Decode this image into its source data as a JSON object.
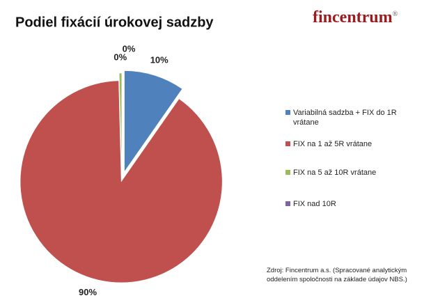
{
  "chart_data": {
    "type": "pie",
    "title": "Podiel fixácií úrokovej sadzby",
    "logo": "fincentrum",
    "logo_mark": "®",
    "categories": [
      "Variabilná sadzba + FIX do 1R vrátane",
      "FIX na 1 až 5R vrátane",
      "FIX na 5 až 10R vrátane",
      "FIX nad 10R"
    ],
    "values": [
      9.7,
      89.9,
      0.4,
      0.0
    ],
    "value_labels": [
      "10%",
      "90%",
      "0%",
      "0%"
    ],
    "colors": [
      "#4f81bd",
      "#c0504d",
      "#9bbb59",
      "#8064a2"
    ],
    "legend": "right",
    "source": "Zdroj: Fincentrum a.s. (Spracované analytickým oddelením spoločnosti na základe údajov NBS.)"
  }
}
